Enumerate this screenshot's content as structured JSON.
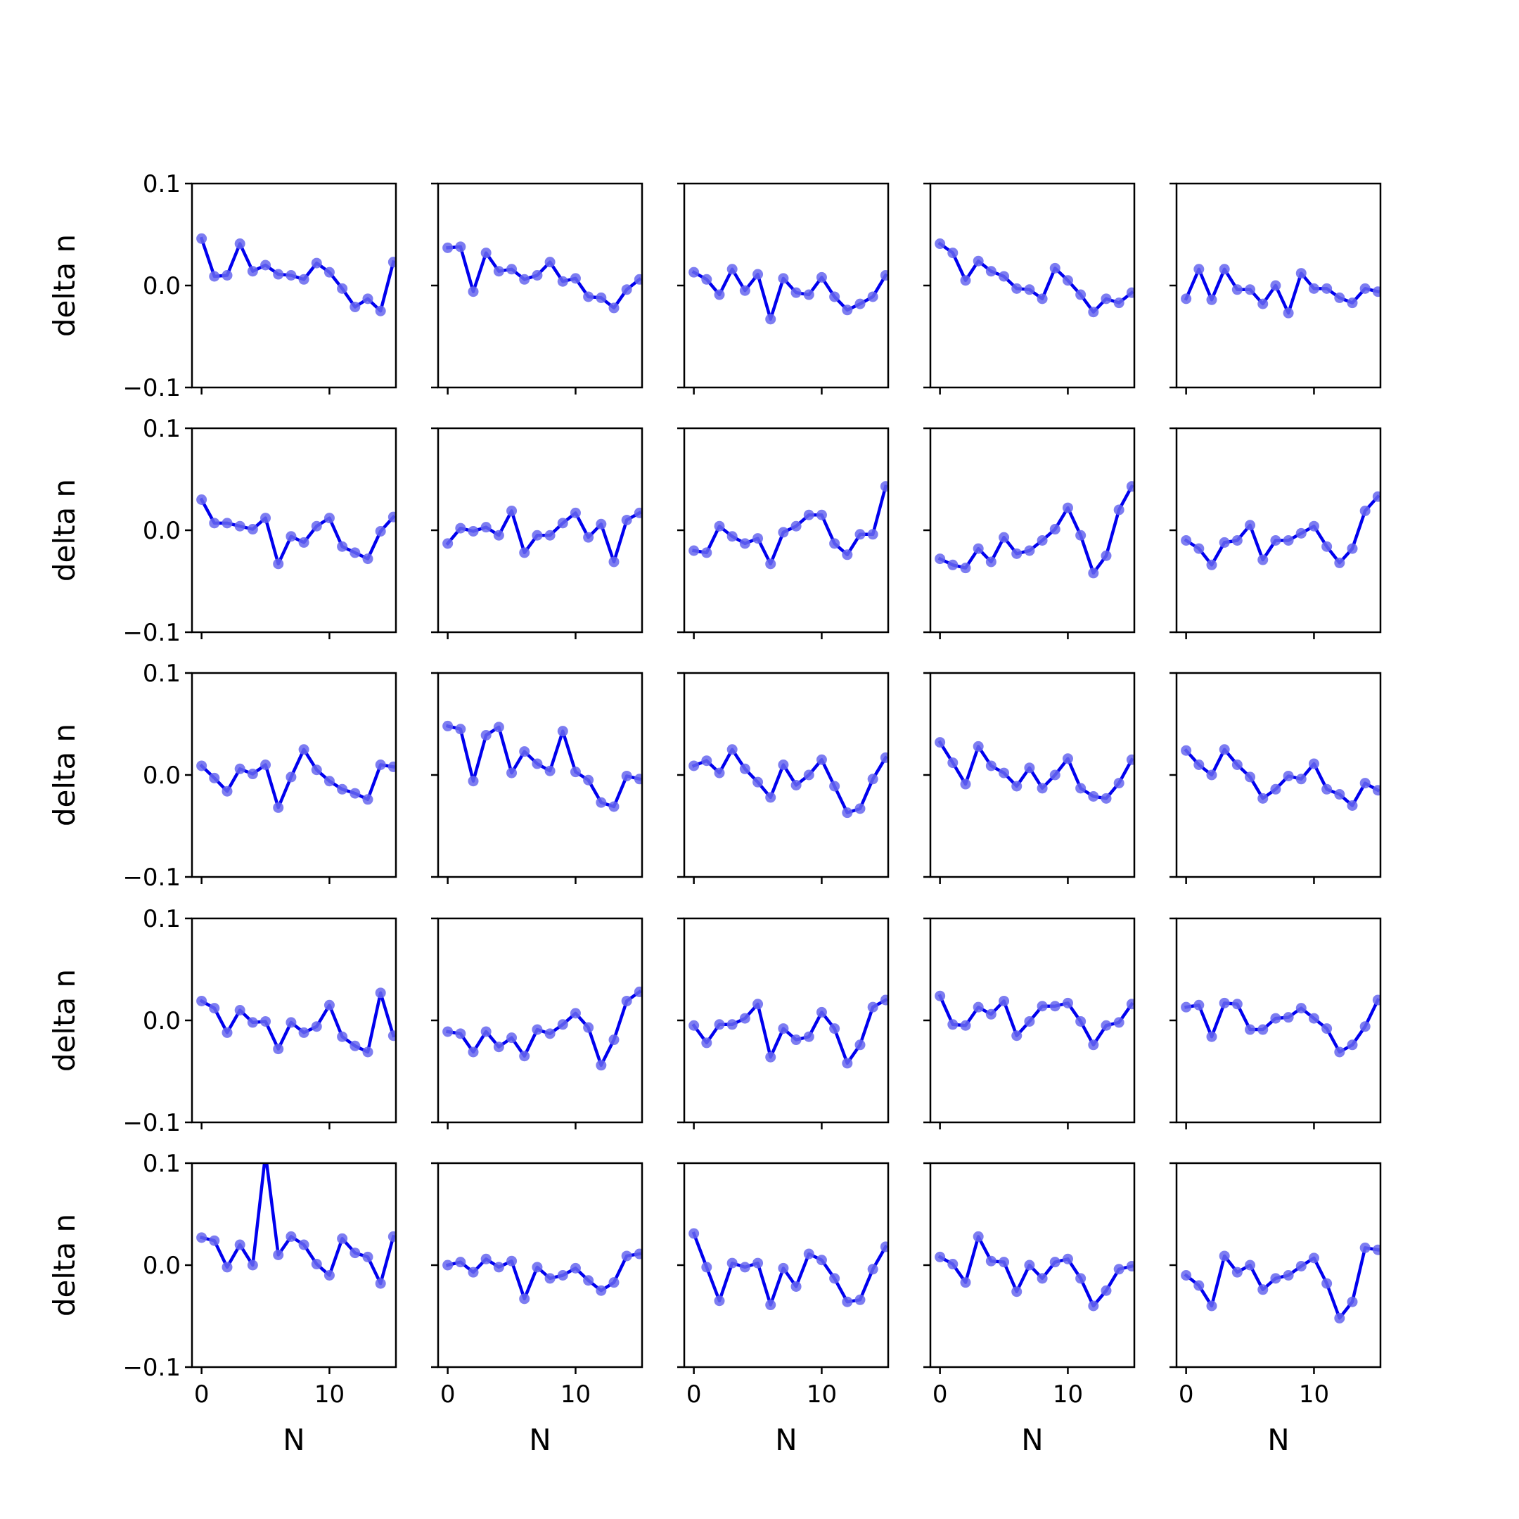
{
  "chart_data": {
    "type": "line",
    "layout": {
      "rows": 5,
      "cols": 5,
      "sharex": true,
      "sharey": true
    },
    "xlabel": "N",
    "ylabel": "delta n",
    "xlim": [
      -0.75,
      15.2
    ],
    "ylim": [
      -0.1,
      0.1
    ],
    "xticks": [
      0,
      10
    ],
    "xtick_labels": [
      "0",
      "10"
    ],
    "yticks": [
      -0.1,
      0.0,
      0.1
    ],
    "ytick_labels": [
      "−0.1",
      "0.0",
      "0.1"
    ],
    "line_color": "#0000ee",
    "marker_color": "#6666ee",
    "x": [
      0,
      1,
      2,
      3,
      4,
      5,
      6,
      7,
      8,
      9,
      10,
      11,
      12,
      13,
      14,
      15
    ],
    "panels": [
      [
        0.046,
        0.009,
        0.01,
        0.041,
        0.014,
        0.02,
        0.011,
        0.01,
        0.006,
        0.022,
        0.013,
        -0.003,
        -0.021,
        -0.013,
        -0.025,
        0.023
      ],
      [
        0.037,
        0.038,
        -0.006,
        0.032,
        0.014,
        0.016,
        0.006,
        0.01,
        0.023,
        0.004,
        0.007,
        -0.011,
        -0.012,
        -0.022,
        -0.004,
        0.006
      ],
      [
        0.013,
        0.006,
        -0.009,
        0.016,
        -0.005,
        0.011,
        -0.033,
        0.007,
        -0.007,
        -0.009,
        0.008,
        -0.011,
        -0.024,
        -0.018,
        -0.011,
        0.01
      ],
      [
        0.041,
        0.032,
        0.005,
        0.024,
        0.014,
        0.009,
        -0.003,
        -0.004,
        -0.013,
        0.017,
        0.005,
        -0.009,
        -0.026,
        -0.013,
        -0.017,
        -0.007
      ],
      [
        -0.013,
        0.016,
        -0.014,
        0.016,
        -0.004,
        -0.004,
        -0.018,
        0.0,
        -0.027,
        0.012,
        -0.003,
        -0.003,
        -0.012,
        -0.017,
        -0.003,
        -0.006
      ],
      [
        0.03,
        0.007,
        0.007,
        0.004,
        0.001,
        0.012,
        -0.033,
        -0.006,
        -0.012,
        0.004,
        0.012,
        -0.016,
        -0.022,
        -0.028,
        -0.001,
        0.013
      ],
      [
        -0.013,
        0.002,
        -0.001,
        0.003,
        -0.005,
        0.019,
        -0.022,
        -0.005,
        -0.005,
        0.007,
        0.017,
        -0.007,
        0.006,
        -0.031,
        0.01,
        0.017
      ],
      [
        -0.02,
        -0.022,
        0.004,
        -0.006,
        -0.013,
        -0.008,
        -0.033,
        -0.002,
        0.004,
        0.015,
        0.015,
        -0.013,
        -0.024,
        -0.004,
        -0.004,
        0.043
      ],
      [
        -0.028,
        -0.034,
        -0.037,
        -0.018,
        -0.031,
        -0.007,
        -0.023,
        -0.02,
        -0.01,
        0.001,
        0.022,
        -0.005,
        -0.042,
        -0.025,
        0.02,
        0.043
      ],
      [
        -0.01,
        -0.018,
        -0.034,
        -0.012,
        -0.01,
        0.005,
        -0.029,
        -0.01,
        -0.01,
        -0.003,
        0.004,
        -0.016,
        -0.032,
        -0.018,
        0.019,
        0.033
      ],
      [
        0.009,
        -0.003,
        -0.016,
        0.006,
        0.001,
        0.01,
        -0.032,
        -0.002,
        0.025,
        0.005,
        -0.006,
        -0.014,
        -0.018,
        -0.024,
        0.01,
        0.008
      ],
      [
        0.048,
        0.045,
        -0.006,
        0.039,
        0.047,
        0.002,
        0.023,
        0.011,
        0.004,
        0.043,
        0.003,
        -0.005,
        -0.027,
        -0.031,
        -0.001,
        -0.004
      ],
      [
        0.009,
        0.014,
        0.002,
        0.025,
        0.006,
        -0.007,
        -0.022,
        0.01,
        -0.01,
        0.0,
        0.015,
        -0.011,
        -0.037,
        -0.033,
        -0.004,
        0.017
      ],
      [
        0.032,
        0.012,
        -0.009,
        0.028,
        0.009,
        0.002,
        -0.011,
        0.007,
        -0.013,
        0.0,
        0.016,
        -0.013,
        -0.021,
        -0.023,
        -0.008,
        0.015
      ],
      [
        0.024,
        0.01,
        0.0,
        0.025,
        0.01,
        -0.002,
        -0.023,
        -0.014,
        -0.001,
        -0.004,
        0.011,
        -0.014,
        -0.019,
        -0.03,
        -0.008,
        -0.015
      ],
      [
        0.019,
        0.012,
        -0.012,
        0.01,
        -0.002,
        -0.001,
        -0.028,
        -0.002,
        -0.012,
        -0.006,
        0.015,
        -0.016,
        -0.025,
        -0.031,
        0.027,
        -0.015
      ],
      [
        -0.011,
        -0.013,
        -0.031,
        -0.011,
        -0.026,
        -0.017,
        -0.035,
        -0.009,
        -0.013,
        -0.004,
        0.007,
        -0.007,
        -0.044,
        -0.019,
        0.019,
        0.028
      ],
      [
        -0.005,
        -0.022,
        -0.004,
        -0.004,
        0.002,
        0.016,
        -0.036,
        -0.008,
        -0.019,
        -0.016,
        0.008,
        -0.008,
        -0.042,
        -0.024,
        0.013,
        0.02
      ],
      [
        0.024,
        -0.004,
        -0.005,
        0.013,
        0.006,
        0.019,
        -0.015,
        -0.001,
        0.014,
        0.014,
        0.017,
        -0.001,
        -0.024,
        -0.005,
        -0.002,
        0.016
      ],
      [
        0.013,
        0.015,
        -0.016,
        0.017,
        0.016,
        -0.009,
        -0.009,
        0.002,
        0.003,
        0.012,
        0.002,
        -0.008,
        -0.031,
        -0.024,
        -0.006,
        0.02
      ],
      [
        0.027,
        0.024,
        -0.002,
        0.02,
        0.0,
        0.109,
        0.01,
        0.028,
        0.02,
        0.001,
        -0.01,
        0.026,
        0.012,
        0.008,
        -0.018,
        0.028
      ],
      [
        0.0,
        0.003,
        -0.007,
        0.006,
        -0.002,
        0.004,
        -0.033,
        -0.002,
        -0.013,
        -0.01,
        -0.003,
        -0.015,
        -0.025,
        -0.017,
        0.009,
        0.011
      ],
      [
        0.031,
        -0.002,
        -0.035,
        0.002,
        -0.002,
        0.002,
        -0.039,
        -0.003,
        -0.021,
        0.011,
        0.005,
        -0.013,
        -0.036,
        -0.034,
        -0.004,
        0.018
      ],
      [
        0.008,
        0.001,
        -0.017,
        0.028,
        0.004,
        0.003,
        -0.026,
        0.0,
        -0.013,
        0.003,
        0.006,
        -0.013,
        -0.04,
        -0.025,
        -0.004,
        -0.001
      ],
      [
        -0.01,
        -0.02,
        -0.04,
        0.009,
        -0.007,
        0.0,
        -0.024,
        -0.013,
        -0.01,
        -0.001,
        0.007,
        -0.018,
        -0.052,
        -0.036,
        0.017,
        0.015
      ]
    ]
  }
}
